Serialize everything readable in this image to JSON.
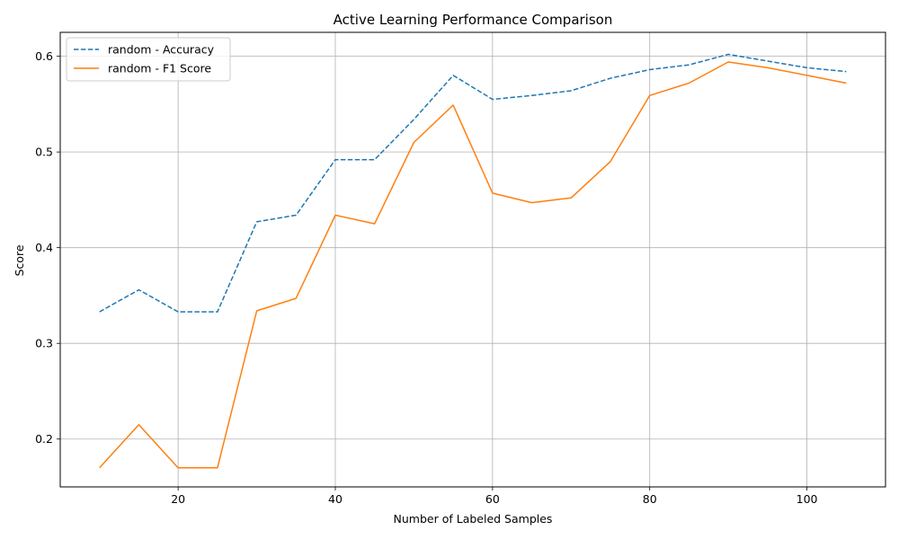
{
  "chart_data": {
    "type": "line",
    "title": "Active Learning Performance Comparison",
    "xlabel": "Number of Labeled Samples",
    "ylabel": "Score",
    "xlim": [
      5,
      110
    ],
    "ylim": [
      0.15,
      0.625
    ],
    "xticks": [
      20,
      40,
      60,
      80,
      100
    ],
    "yticks": [
      0.2,
      0.3,
      0.4,
      0.5,
      0.6
    ],
    "ytick_labels": [
      "0.2",
      "0.3",
      "0.4",
      "0.5",
      "0.6"
    ],
    "grid": true,
    "legend": "top-left",
    "x": [
      10,
      15,
      20,
      25,
      30,
      35,
      40,
      45,
      50,
      55,
      60,
      65,
      70,
      75,
      80,
      85,
      90,
      95,
      100,
      105
    ],
    "series": [
      {
        "name": "random - Accuracy",
        "color": "#1f77b4",
        "style": "dashed",
        "values": [
          0.333,
          0.356,
          0.333,
          0.333,
          0.427,
          0.434,
          0.492,
          0.492,
          0.534,
          0.58,
          0.555,
          0.559,
          0.564,
          0.577,
          0.586,
          0.591,
          0.602,
          0.595,
          0.588,
          0.584
        ]
      },
      {
        "name": "random - F1 Score",
        "color": "#ff7f0e",
        "style": "solid",
        "values": [
          0.17,
          0.215,
          0.17,
          0.17,
          0.334,
          0.347,
          0.434,
          0.425,
          0.51,
          0.549,
          0.457,
          0.447,
          0.452,
          0.49,
          0.559,
          0.572,
          0.594,
          0.588,
          0.58,
          0.572
        ]
      }
    ]
  }
}
